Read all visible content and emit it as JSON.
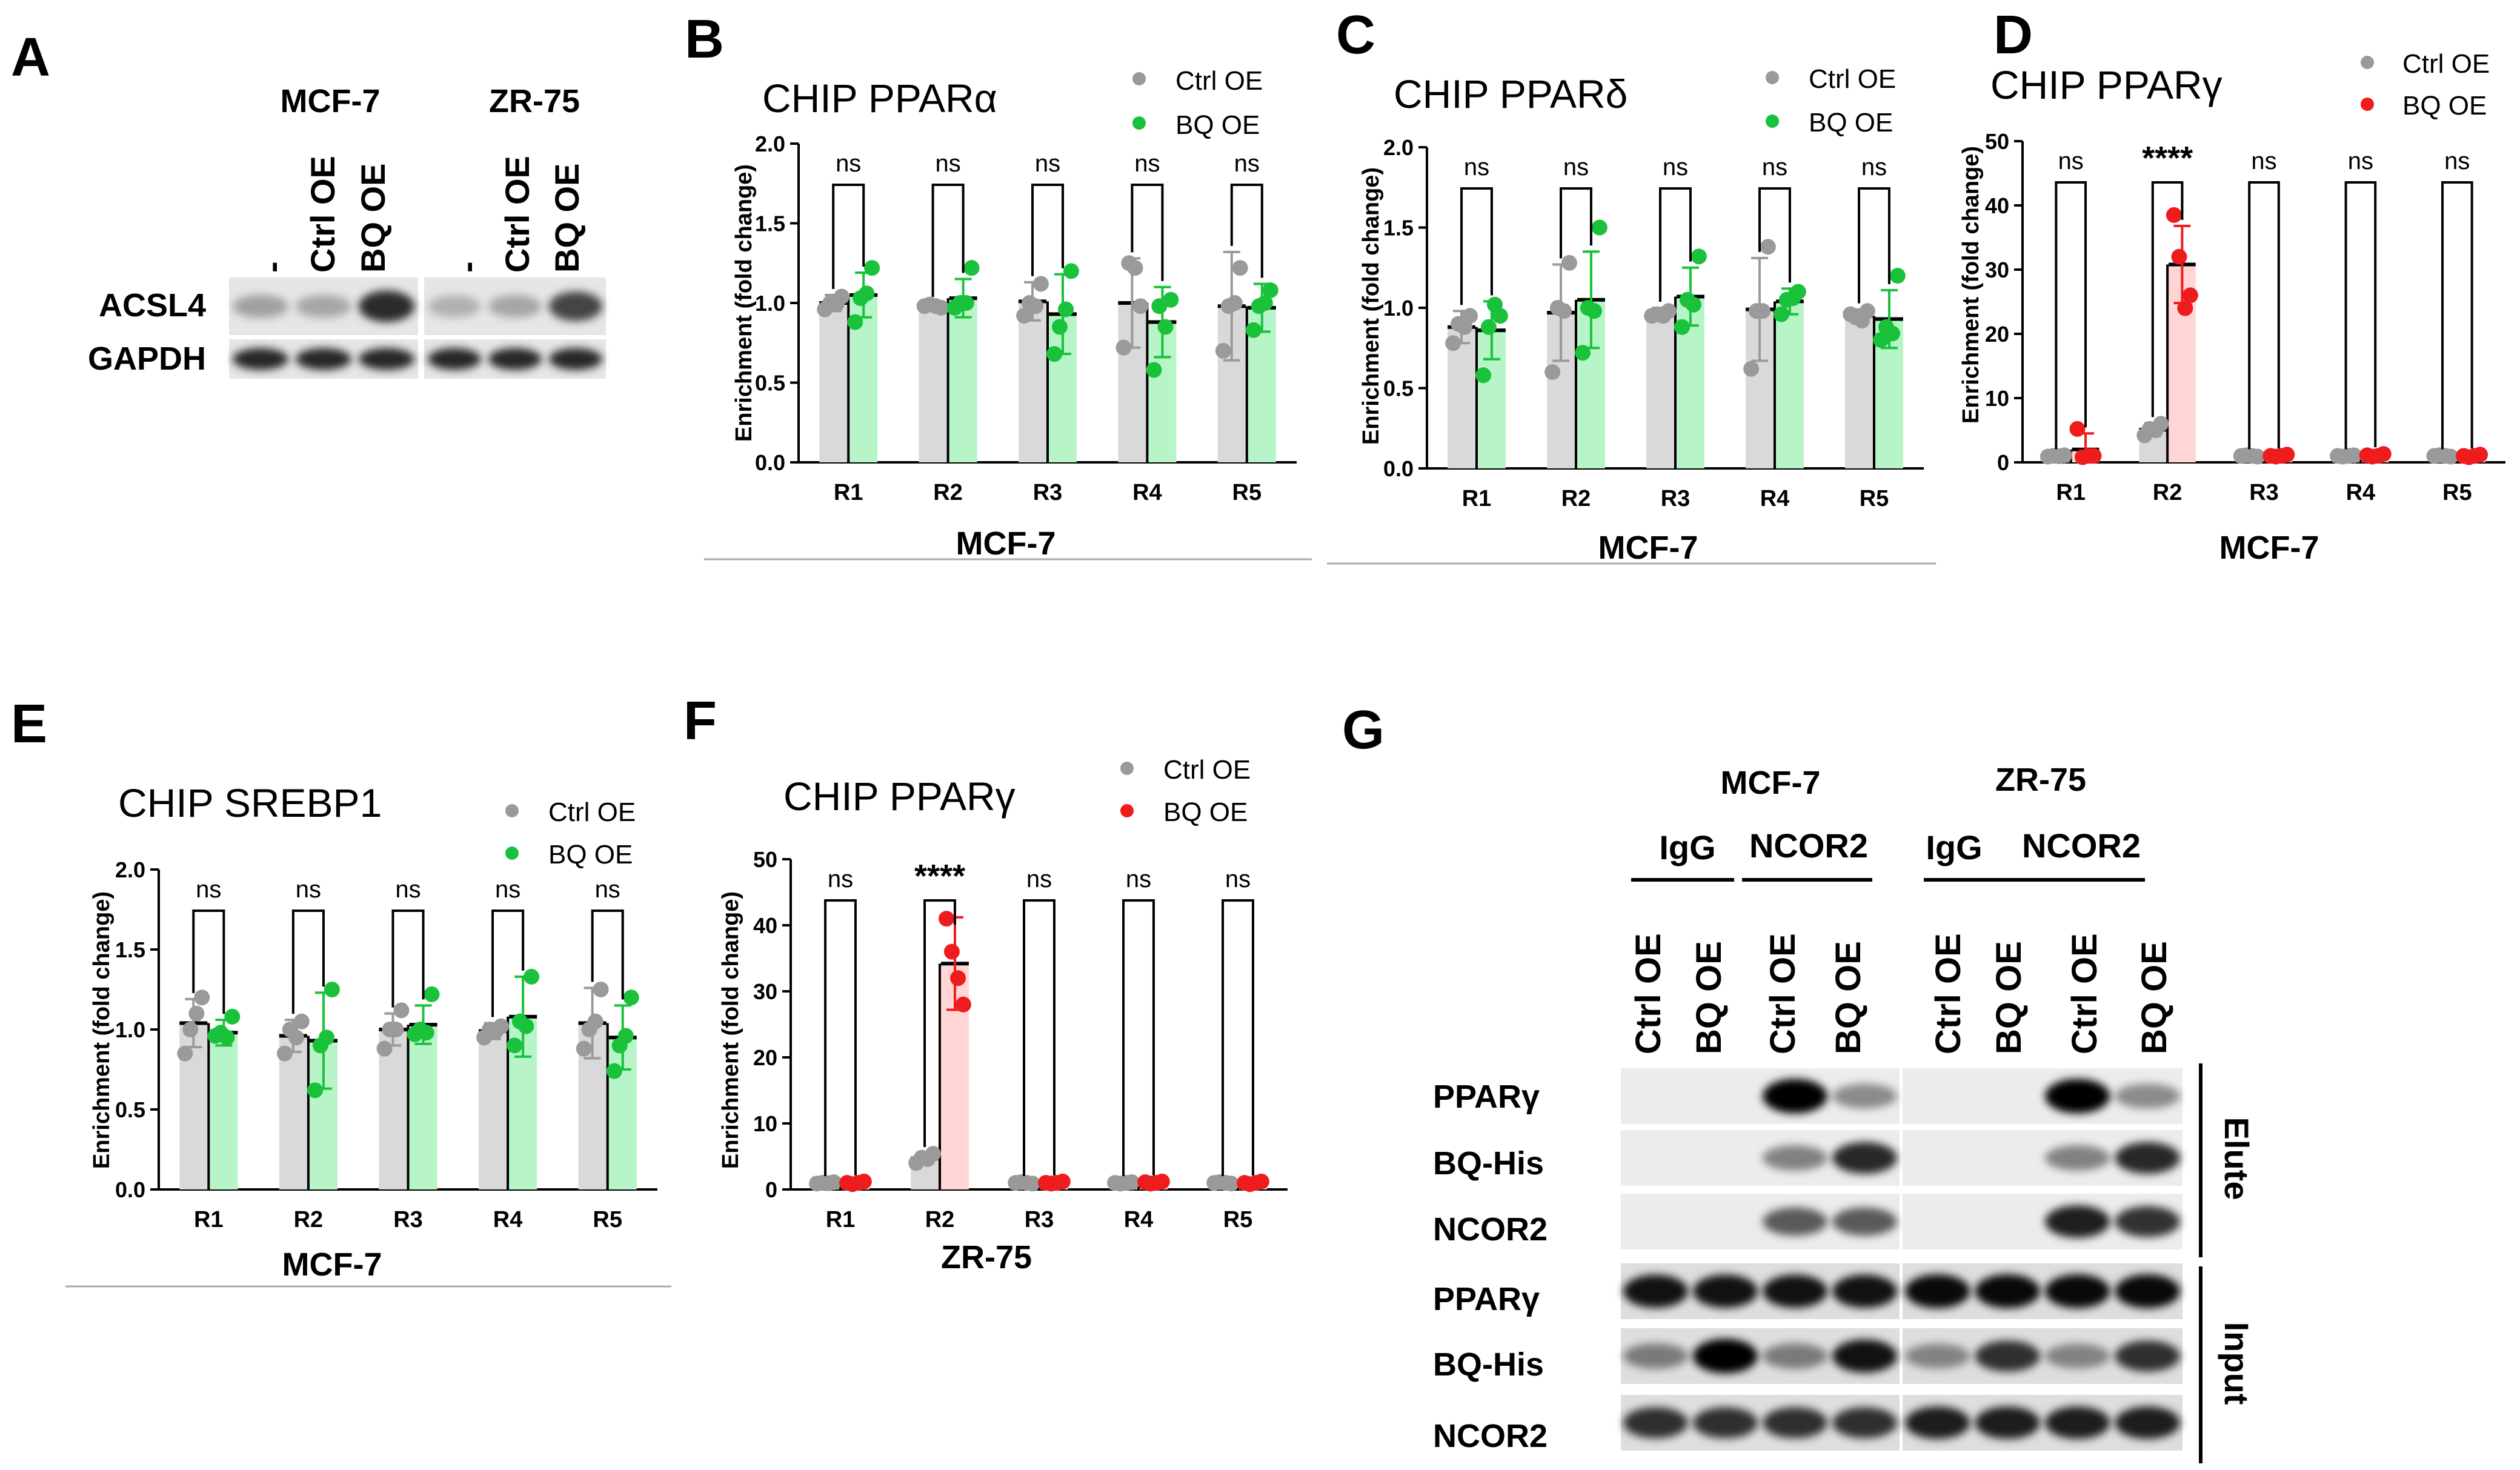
{
  "panel_labels": [
    "A",
    "B",
    "C",
    "D",
    "E",
    "F",
    "G"
  ],
  "panel_a": {
    "cell_lines": [
      "MCF-7",
      "ZR-75"
    ],
    "lanes": [
      "-",
      "Ctrl OE",
      "BQ OE"
    ],
    "rows": [
      "ACSL4",
      "GAPDH"
    ],
    "acsl4_intensity": [
      [
        0.18,
        0.15,
        0.78
      ],
      [
        0.1,
        0.15,
        0.65
      ]
    ],
    "gapdh_intensity": [
      [
        0.8,
        0.8,
        0.8
      ],
      [
        0.8,
        0.8,
        0.8
      ]
    ]
  },
  "chart_data": [
    {
      "panel": "B",
      "type": "bar",
      "title": "CHIP PPARα",
      "xlabel": "MCF-7",
      "ylabel": "Enrichment (fold change)",
      "categories": [
        "R1",
        "R2",
        "R3",
        "R4",
        "R5"
      ],
      "ylim": [
        0,
        2.0
      ],
      "yticks": [
        "0.0",
        "0.5",
        "1.0",
        "1.5",
        "2.0"
      ],
      "series": [
        {
          "name": "Ctrl OE",
          "values": [
            1.0,
            0.98,
            1.01,
            1.0,
            0.98
          ],
          "errors": [
            0.05,
            0.02,
            0.12,
            0.28,
            0.34
          ],
          "points": [
            [
              0.96,
              1.04,
              1.0,
              0.99
            ],
            [
              0.98,
              0.97,
              0.99,
              0.98
            ],
            [
              0.92,
              1.12,
              1.0,
              0.98
            ],
            [
              0.72,
              0.98,
              1.25,
              1.22
            ],
            [
              0.7,
              1.22,
              0.98,
              1.0
            ]
          ]
        },
        {
          "name": "BQ OE",
          "values": [
            1.05,
            1.03,
            0.93,
            0.88,
            0.97
          ],
          "errors": [
            0.14,
            0.12,
            0.25,
            0.22,
            0.15
          ],
          "points": [
            [
              0.88,
              1.22,
              1.03,
              1.06
            ],
            [
              0.97,
              1.22,
              1.0,
              1.0
            ],
            [
              0.68,
              1.2,
              0.85,
              0.96
            ],
            [
              0.58,
              1.02,
              0.98,
              0.85
            ],
            [
              0.83,
              1.08,
              0.98,
              1.0
            ]
          ]
        }
      ],
      "significance": [
        "ns",
        "ns",
        "ns",
        "ns",
        "ns"
      ],
      "colors": {
        "ctrl_fill": "#d9d9d9",
        "ctrl_dot": "#9a9a9a",
        "bq_fill": "#b7f5c9",
        "bq_dot": "#19c23a"
      }
    },
    {
      "panel": "C",
      "type": "bar",
      "title": "CHIP PPARδ",
      "xlabel": "MCF-7",
      "ylabel": "Enrichment (fold change)",
      "categories": [
        "R1",
        "R2",
        "R3",
        "R4",
        "R5"
      ],
      "ylim": [
        0,
        2.0
      ],
      "yticks": [
        "0.0",
        "0.5",
        "1.0",
        "1.5",
        "2.0"
      ],
      "series": [
        {
          "name": "Ctrl OE",
          "values": [
            0.88,
            0.97,
            0.96,
            0.99,
            0.95
          ],
          "errors": [
            0.1,
            0.3,
            0.04,
            0.32,
            0.04
          ],
          "points": [
            [
              0.78,
              0.95,
              0.9,
              0.88
            ],
            [
              0.6,
              1.28,
              1.0,
              0.98
            ],
            [
              0.95,
              0.98,
              0.96,
              0.95
            ],
            [
              0.62,
              1.38,
              0.98,
              0.98
            ],
            [
              0.96,
              0.98,
              0.94,
              0.92
            ]
          ]
        },
        {
          "name": "BQ OE",
          "values": [
            0.86,
            1.05,
            1.07,
            1.04,
            0.93
          ],
          "errors": [
            0.18,
            0.3,
            0.18,
            0.08,
            0.18
          ],
          "points": [
            [
              0.58,
              0.95,
              0.88,
              1.02
            ],
            [
              0.72,
              1.5,
              1.0,
              0.98
            ],
            [
              0.88,
              1.32,
              1.05,
              1.02
            ],
            [
              0.96,
              1.1,
              1.05,
              1.06
            ],
            [
              0.8,
              1.2,
              0.88,
              0.84
            ]
          ]
        }
      ],
      "significance": [
        "ns",
        "ns",
        "ns",
        "ns",
        "ns"
      ],
      "colors": {
        "ctrl_fill": "#d9d9d9",
        "ctrl_dot": "#9a9a9a",
        "bq_fill": "#b7f5c9",
        "bq_dot": "#19c23a"
      }
    },
    {
      "panel": "D",
      "type": "bar",
      "title": "CHIP PPARγ",
      "xlabel": "MCF-7",
      "ylabel": "Enrichment (fold change)",
      "categories": [
        "R1",
        "R2",
        "R3",
        "R4",
        "R5"
      ],
      "ylim": [
        0,
        50
      ],
      "yticks": [
        "0",
        "10",
        "20",
        "30",
        "40",
        "50"
      ],
      "series": [
        {
          "name": "Ctrl OE",
          "values": [
            1.0,
            5.1,
            1.0,
            1.0,
            1.0
          ],
          "errors": [
            0.1,
            1.0,
            0.1,
            0.1,
            0.1
          ],
          "points": [
            [
              0.9,
              1.1,
              1.0,
              0.95
            ],
            [
              4.2,
              6.0,
              5.2,
              5.0
            ],
            [
              1.0,
              0.9,
              1.1,
              1.0
            ],
            [
              1.0,
              1.1,
              0.9,
              1.0
            ],
            [
              1.0,
              0.9,
              1.1,
              1.0
            ]
          ]
        },
        {
          "name": "BQ OE",
          "values": [
            2.0,
            30.8,
            1.0,
            1.1,
            1.0
          ],
          "errors": [
            2.5,
            6.0,
            0.2,
            0.3,
            0.2
          ],
          "points": [
            [
              5.2,
              1.0,
              0.8,
              1.0
            ],
            [
              38.5,
              26.0,
              32.0,
              24.0
            ],
            [
              1.0,
              1.2,
              0.9,
              1.0
            ],
            [
              1.1,
              1.3,
              0.9,
              1.0
            ],
            [
              1.0,
              1.2,
              0.8,
              1.0
            ]
          ]
        }
      ],
      "significance": [
        "ns",
        "****",
        "ns",
        "ns",
        "ns"
      ],
      "colors": {
        "ctrl_fill": "#d9d9d9",
        "ctrl_dot": "#9a9a9a",
        "bq_fill": "#ffd5d5",
        "bq_dot": "#ee1c1c"
      }
    },
    {
      "panel": "E",
      "type": "bar",
      "title": "CHIP SREBP1",
      "xlabel": "MCF-7",
      "ylabel": "Enrichment (fold change)",
      "categories": [
        "R1",
        "R2",
        "R3",
        "R4",
        "R5"
      ],
      "ylim": [
        0,
        2.0
      ],
      "yticks": [
        "0.0",
        "0.5",
        "1.0",
        "1.5",
        "2.0"
      ],
      "series": [
        {
          "name": "Ctrl OE",
          "values": [
            1.04,
            0.96,
            1.0,
            0.99,
            1.04
          ],
          "errors": [
            0.15,
            0.1,
            0.1,
            0.05,
            0.22
          ],
          "points": [
            [
              0.85,
              1.2,
              1.0,
              1.1
            ],
            [
              0.85,
              1.05,
              1.0,
              0.95
            ],
            [
              0.88,
              1.12,
              1.0,
              1.0
            ],
            [
              0.95,
              1.02,
              1.0,
              0.99
            ],
            [
              0.88,
              1.25,
              1.0,
              1.05
            ]
          ]
        },
        {
          "name": "BQ OE",
          "values": [
            0.98,
            0.93,
            1.03,
            1.08,
            0.95
          ],
          "errors": [
            0.08,
            0.3,
            0.12,
            0.25,
            0.2
          ],
          "points": [
            [
              0.96,
              1.08,
              0.98,
              0.95
            ],
            [
              0.62,
              1.25,
              0.9,
              0.95
            ],
            [
              0.97,
              1.22,
              1.0,
              0.98
            ],
            [
              0.9,
              1.33,
              1.05,
              1.02
            ],
            [
              0.74,
              1.2,
              0.9,
              0.96
            ]
          ]
        }
      ],
      "significance": [
        "ns",
        "ns",
        "ns",
        "ns",
        "ns"
      ],
      "colors": {
        "ctrl_fill": "#d9d9d9",
        "ctrl_dot": "#9a9a9a",
        "bq_fill": "#b7f5c9",
        "bq_dot": "#19c23a"
      }
    },
    {
      "panel": "F",
      "type": "bar",
      "title": "CHIP PPARγ",
      "xlabel": "ZR-75",
      "ylabel": "Enrichment (fold change)",
      "categories": [
        "R1",
        "R2",
        "R3",
        "R4",
        "R5"
      ],
      "ylim": [
        0,
        50
      ],
      "yticks": [
        "0",
        "10",
        "20",
        "30",
        "40",
        "50"
      ],
      "series": [
        {
          "name": "Ctrl OE",
          "values": [
            1.0,
            4.7,
            1.0,
            1.0,
            1.0
          ],
          "errors": [
            0.1,
            0.8,
            0.1,
            0.1,
            0.1
          ],
          "points": [
            [
              0.9,
              1.1,
              1.0,
              0.95
            ],
            [
              4.0,
              5.4,
              4.8,
              4.6
            ],
            [
              1.0,
              0.9,
              1.1,
              1.0
            ],
            [
              1.0,
              1.1,
              0.9,
              1.0
            ],
            [
              1.0,
              0.9,
              1.1,
              1.0
            ]
          ]
        },
        {
          "name": "BQ OE",
          "values": [
            1.0,
            34.2,
            1.0,
            1.0,
            1.0
          ],
          "errors": [
            0.2,
            7.0,
            0.2,
            0.2,
            0.2
          ],
          "points": [
            [
              1.0,
              1.2,
              0.8,
              1.0
            ],
            [
              41.0,
              28.0,
              36.0,
              32.0
            ],
            [
              1.0,
              1.2,
              0.9,
              1.0
            ],
            [
              1.1,
              1.2,
              0.9,
              1.0
            ],
            [
              1.0,
              1.2,
              0.8,
              1.0
            ]
          ]
        }
      ],
      "significance": [
        "ns",
        "****",
        "ns",
        "ns",
        "ns"
      ],
      "colors": {
        "ctrl_fill": "#d9d9d9",
        "ctrl_dot": "#9a9a9a",
        "bq_fill": "#ffd5d5",
        "bq_dot": "#ee1c1c"
      }
    }
  ],
  "panel_g": {
    "cell_lines": [
      "MCF-7",
      "ZR-75"
    ],
    "ip_groups": [
      "IgG",
      "NCOR2"
    ],
    "lanes": [
      "Ctrl OE",
      "BQ OE",
      "Ctrl OE",
      "BQ OE"
    ],
    "rows": [
      "PPARγ",
      "BQ-His",
      "NCOR2",
      "PPARγ",
      "BQ-His",
      "NCOR2"
    ],
    "side_labels": [
      "Elute",
      "Input"
    ],
    "intensity": [
      [
        [
          0.0,
          0.0,
          1.0,
          0.3
        ],
        [
          0.0,
          0.0,
          1.0,
          0.3
        ]
      ],
      [
        [
          0.0,
          0.0,
          0.35,
          0.8
        ],
        [
          0.0,
          0.0,
          0.35,
          0.8
        ]
      ],
      [
        [
          0.0,
          0.0,
          0.55,
          0.55
        ],
        [
          0.0,
          0.0,
          0.85,
          0.75
        ]
      ],
      [
        [
          0.9,
          0.9,
          0.9,
          0.9
        ],
        [
          0.95,
          0.95,
          0.95,
          0.95
        ]
      ],
      [
        [
          0.35,
          1.0,
          0.35,
          0.9
        ],
        [
          0.3,
          0.75,
          0.3,
          0.75
        ]
      ],
      [
        [
          0.75,
          0.75,
          0.75,
          0.75
        ],
        [
          0.85,
          0.85,
          0.85,
          0.85
        ]
      ]
    ]
  }
}
